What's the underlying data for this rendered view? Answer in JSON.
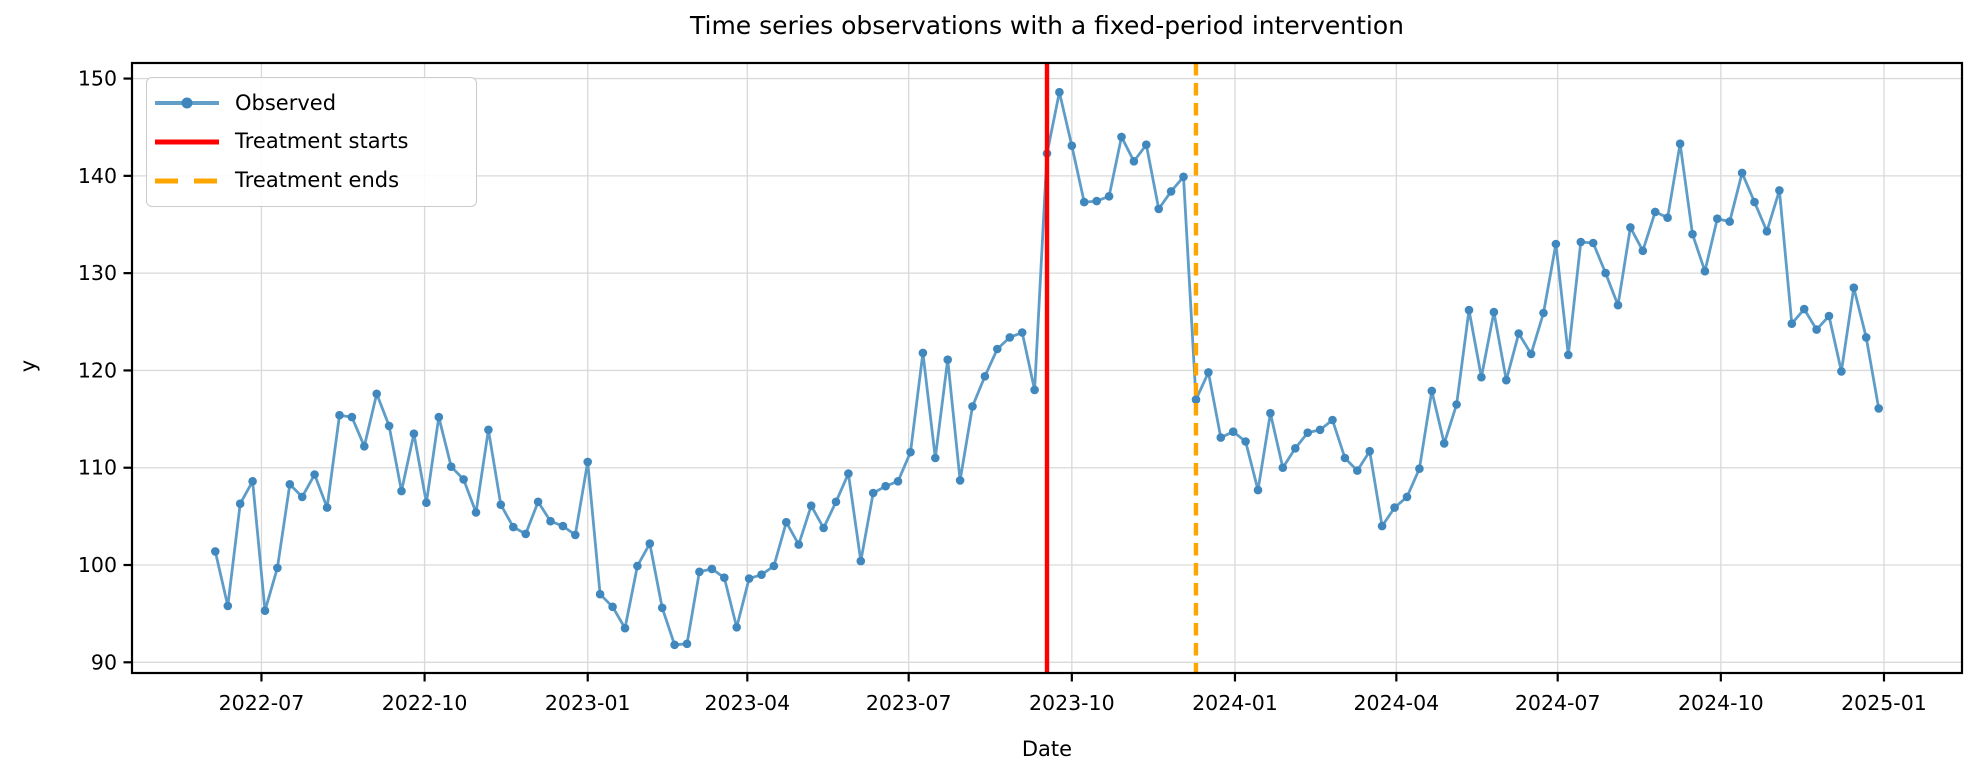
{
  "title": "Time series observations with a fixed-period intervention",
  "xlabel": "Date",
  "ylabel": "y",
  "chart_data": {
    "type": "line",
    "title": "Time series observations with a fixed-period intervention",
    "xlabel": "Date",
    "ylabel": "y",
    "grid": true,
    "legend_position": "upper left",
    "x_start": "2022-06-05",
    "x_step_days": 7,
    "xlim": [
      "2022-04-19",
      "2025-02-14"
    ],
    "ylim": [
      88.9,
      151.6
    ],
    "yticks": [
      90,
      100,
      110,
      120,
      130,
      140,
      150
    ],
    "xticks": [
      {
        "label": "2022-07",
        "date": "2022-07-01"
      },
      {
        "label": "2022-10",
        "date": "2022-10-01"
      },
      {
        "label": "2023-01",
        "date": "2023-01-01"
      },
      {
        "label": "2023-04",
        "date": "2023-04-01"
      },
      {
        "label": "2023-07",
        "date": "2023-07-01"
      },
      {
        "label": "2023-10",
        "date": "2023-10-01"
      },
      {
        "label": "2024-01",
        "date": "2024-01-01"
      },
      {
        "label": "2024-04",
        "date": "2024-04-01"
      },
      {
        "label": "2024-07",
        "date": "2024-07-01"
      },
      {
        "label": "2024-10",
        "date": "2024-10-01"
      },
      {
        "label": "2025-01",
        "date": "2025-01-01"
      }
    ],
    "series": [
      {
        "name": "Observed",
        "color": "#1f77b4",
        "alpha": 0.7,
        "line_color_rendered": "#5f9dc9",
        "marker_color_rendered": "#3f87bc",
        "marker": "o",
        "values": [
          101.4,
          95.8,
          106.3,
          108.6,
          95.3,
          99.7,
          108.3,
          107.0,
          109.3,
          105.9,
          115.4,
          115.2,
          112.2,
          117.6,
          114.3,
          107.6,
          113.5,
          106.4,
          115.2,
          110.1,
          108.8,
          105.4,
          113.9,
          106.2,
          103.9,
          103.2,
          106.5,
          104.5,
          104.0,
          103.1,
          110.6,
          97.0,
          95.7,
          93.5,
          99.9,
          102.2,
          95.6,
          91.8,
          91.9,
          99.3,
          99.6,
          98.7,
          93.6,
          98.6,
          99.0,
          99.9,
          104.4,
          102.1,
          106.1,
          103.8,
          106.5,
          109.4,
          100.4,
          107.4,
          108.1,
          108.6,
          111.6,
          121.8,
          111.0,
          121.1,
          108.7,
          116.3,
          119.4,
          122.2,
          123.4,
          123.9,
          118.0,
          142.3,
          148.6,
          143.1,
          137.3,
          137.4,
          137.9,
          144.0,
          141.5,
          143.2,
          136.6,
          138.4,
          139.9,
          117.0,
          119.8,
          113.1,
          113.7,
          112.7,
          107.7,
          115.6,
          110.0,
          112.0,
          113.6,
          113.9,
          114.9,
          111.0,
          109.7,
          111.7,
          104.0,
          105.9,
          107.0,
          109.9,
          117.9,
          112.5,
          116.5,
          126.2,
          119.3,
          126.0,
          119.0,
          123.8,
          121.7,
          125.9,
          133.0,
          121.6,
          133.2,
          133.1,
          130.0,
          126.7,
          134.7,
          132.3,
          136.3,
          135.7,
          143.3,
          134.0,
          130.2,
          135.6,
          135.3,
          140.3,
          137.3,
          134.3,
          138.5,
          124.8,
          126.3,
          124.2,
          125.6,
          119.9,
          128.5,
          123.4,
          116.1
        ]
      }
    ],
    "annotations": [
      {
        "type": "vline",
        "label": "Treatment starts",
        "x": "2023-09-17",
        "color": "#ff0000",
        "style": "solid",
        "linewidth": 4.4
      },
      {
        "type": "vline",
        "label": "Treatment ends",
        "x": "2023-12-10",
        "color": "#ffa500",
        "style": "dashed",
        "linewidth": 4.4
      }
    ]
  },
  "colors": {
    "grid": "#d9d9d9",
    "spine": "#000000",
    "background": "#ffffff",
    "observed_line": "#5f9dc9",
    "observed_marker": "#3f87bc",
    "treatment_start": "#ff0000",
    "treatment_end": "#ffa500"
  }
}
